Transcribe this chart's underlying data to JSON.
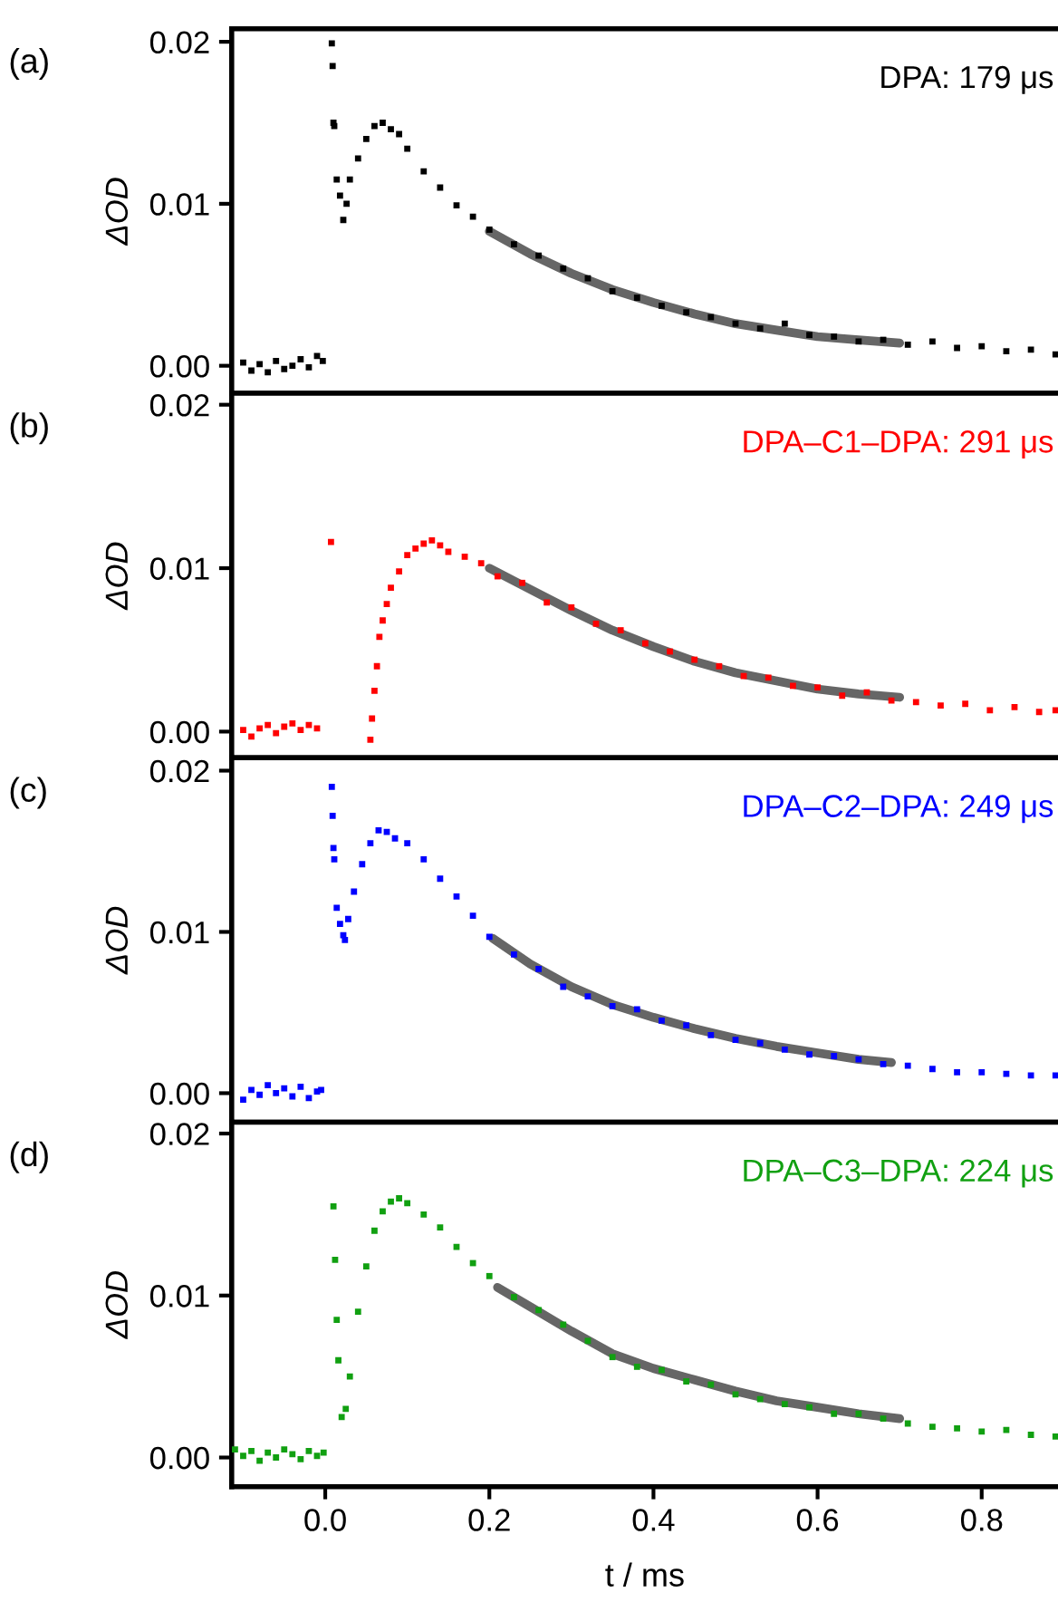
{
  "chart_data": [
    {
      "type": "scatter",
      "annotations": [
        "(a)"
      ],
      "ylabel": "ΔOD",
      "xlim": [
        -0.114,
        0.893
      ],
      "ylim": [
        -0.0017,
        0.0208
      ],
      "yticks": [
        {
          "value": 0,
          "label": "0.00"
        },
        {
          "value": 0.01,
          "label": "0.01"
        },
        {
          "value": 0.02,
          "label": "0.02"
        }
      ],
      "tick_labels": "y",
      "grid": false,
      "legend": false,
      "series": [
        {
          "name": "DPA: 179 μs",
          "color": "#000000",
          "marker": "square",
          "x": [
            -0.1,
            -0.09,
            -0.08,
            -0.07,
            -0.06,
            -0.05,
            -0.04,
            -0.03,
            -0.02,
            -0.01,
            -0.003,
            0.008,
            0.009,
            0.01,
            0.011,
            0.014,
            0.018,
            0.022,
            0.026,
            0.03,
            0.04,
            0.05,
            0.06,
            0.07,
            0.08,
            0.09,
            0.1,
            0.12,
            0.14,
            0.16,
            0.18,
            0.2,
            0.23,
            0.26,
            0.29,
            0.32,
            0.35,
            0.38,
            0.41,
            0.44,
            0.47,
            0.5,
            0.53,
            0.56,
            0.59,
            0.62,
            0.65,
            0.68,
            0.71,
            0.74,
            0.77,
            0.8,
            0.83,
            0.86,
            0.89
          ],
          "values": [
            0.0002,
            -0.0003,
            0.0001,
            -0.0004,
            0.0003,
            -0.0002,
            0.0,
            0.0004,
            -0.0001,
            0.0006,
            0.0003,
            0.0199,
            0.0185,
            0.015,
            0.0148,
            0.0115,
            0.0105,
            0.009,
            0.01,
            0.0115,
            0.0128,
            0.014,
            0.0148,
            0.015,
            0.0146,
            0.0143,
            0.0134,
            0.012,
            0.011,
            0.0099,
            0.0092,
            0.0084,
            0.0075,
            0.0068,
            0.006,
            0.0054,
            0.0046,
            0.0042,
            0.0037,
            0.0033,
            0.003,
            0.0026,
            0.0023,
            0.0026,
            0.0019,
            0.0018,
            0.0015,
            0.0016,
            0.0013,
            0.0015,
            0.0011,
            0.0012,
            0.0009,
            0.001,
            0.0007
          ]
        },
        {
          "type": "line",
          "color": "#666666",
          "x": [
            0.2,
            0.25,
            0.3,
            0.35,
            0.4,
            0.45,
            0.5,
            0.55,
            0.6,
            0.65,
            0.7
          ],
          "values": [
            0.0083,
            0.0069,
            0.0057,
            0.0047,
            0.0039,
            0.0032,
            0.0026,
            0.0022,
            0.0018,
            0.0016,
            0.0014
          ]
        }
      ]
    },
    {
      "type": "scatter",
      "annotations": [
        "(b)"
      ],
      "ylabel": "ΔOD",
      "xlim": [
        -0.114,
        0.893
      ],
      "ylim": [
        -0.0016,
        0.0207
      ],
      "yticks": [
        {
          "value": 0,
          "label": "0.00"
        },
        {
          "value": 0.01,
          "label": "0.01"
        },
        {
          "value": 0.02,
          "label": "0.02"
        }
      ],
      "tick_labels": "y",
      "grid": false,
      "legend": false,
      "series": [
        {
          "name": "DPA–C1–DPA: 291 μs",
          "color": "#ff0000",
          "marker": "square",
          "x": [
            -0.1,
            -0.09,
            -0.08,
            -0.07,
            -0.06,
            -0.05,
            -0.04,
            -0.03,
            -0.02,
            -0.01,
            0.007,
            0.055,
            0.057,
            0.06,
            0.063,
            0.066,
            0.07,
            0.075,
            0.08,
            0.09,
            0.1,
            0.11,
            0.12,
            0.13,
            0.14,
            0.15,
            0.17,
            0.19,
            0.21,
            0.24,
            0.27,
            0.3,
            0.33,
            0.36,
            0.39,
            0.42,
            0.45,
            0.48,
            0.51,
            0.54,
            0.57,
            0.6,
            0.63,
            0.66,
            0.69,
            0.72,
            0.75,
            0.78,
            0.81,
            0.84,
            0.87,
            0.89
          ],
          "values": [
            0.0001,
            -0.0003,
            0.0002,
            0.0004,
            -0.0001,
            0.0003,
            0.0005,
            0.0001,
            0.0004,
            0.0002,
            0.0116,
            -0.0005,
            0.0008,
            0.0025,
            0.004,
            0.0058,
            0.0068,
            0.0078,
            0.0088,
            0.0098,
            0.0108,
            0.0112,
            0.0115,
            0.0117,
            0.0114,
            0.011,
            0.0107,
            0.0103,
            0.0095,
            0.0091,
            0.0079,
            0.0076,
            0.0066,
            0.0062,
            0.0054,
            0.0049,
            0.0044,
            0.004,
            0.0034,
            0.0033,
            0.0028,
            0.0027,
            0.0022,
            0.0024,
            0.0019,
            0.0018,
            0.0016,
            0.0017,
            0.0013,
            0.0015,
            0.0012,
            0.0013
          ]
        },
        {
          "type": "line",
          "color": "#666666",
          "x": [
            0.2,
            0.25,
            0.3,
            0.35,
            0.4,
            0.45,
            0.5,
            0.55,
            0.6,
            0.65,
            0.7
          ],
          "values": [
            0.01,
            0.0087,
            0.0074,
            0.0062,
            0.0052,
            0.0043,
            0.0036,
            0.0031,
            0.0026,
            0.0023,
            0.0021
          ]
        }
      ]
    },
    {
      "type": "scatter",
      "annotations": [
        "(c)"
      ],
      "ylabel": "ΔOD",
      "xlim": [
        -0.114,
        0.893
      ],
      "ylim": [
        -0.0018,
        0.0208
      ],
      "yticks": [
        {
          "value": 0,
          "label": "0.00"
        },
        {
          "value": 0.01,
          "label": "0.01"
        },
        {
          "value": 0.02,
          "label": "0.02"
        }
      ],
      "tick_labels": "y",
      "grid": false,
      "legend": false,
      "series": [
        {
          "name": "DPA–C2–DPA: 249 μs",
          "color": "#0000ff",
          "marker": "square",
          "x": [
            -0.1,
            -0.09,
            -0.08,
            -0.07,
            -0.06,
            -0.05,
            -0.04,
            -0.03,
            -0.02,
            -0.01,
            -0.005,
            0.008,
            0.009,
            0.01,
            0.011,
            0.014,
            0.018,
            0.022,
            0.024,
            0.028,
            0.035,
            0.045,
            0.055,
            0.065,
            0.075,
            0.085,
            0.1,
            0.12,
            0.14,
            0.16,
            0.18,
            0.2,
            0.23,
            0.26,
            0.29,
            0.32,
            0.35,
            0.38,
            0.41,
            0.44,
            0.47,
            0.5,
            0.53,
            0.56,
            0.59,
            0.62,
            0.65,
            0.68,
            0.71,
            0.74,
            0.77,
            0.8,
            0.83,
            0.86,
            0.89
          ],
          "values": [
            -0.0004,
            0.0002,
            -0.0001,
            0.0005,
            0.0,
            0.0003,
            -0.0002,
            0.0004,
            -0.0003,
            0.0001,
            0.0002,
            0.019,
            0.0172,
            0.0152,
            0.0145,
            0.0115,
            0.0105,
            0.0098,
            0.0095,
            0.0108,
            0.0125,
            0.0142,
            0.0155,
            0.0163,
            0.0162,
            0.0158,
            0.0155,
            0.0145,
            0.0133,
            0.0122,
            0.011,
            0.0097,
            0.0086,
            0.0077,
            0.0066,
            0.006,
            0.0054,
            0.0052,
            0.0045,
            0.0042,
            0.0036,
            0.0033,
            0.0031,
            0.0027,
            0.0024,
            0.0023,
            0.0021,
            0.0018,
            0.0017,
            0.0015,
            0.0013,
            0.0013,
            0.0012,
            0.0011,
            0.0011
          ]
        },
        {
          "type": "line",
          "color": "#666666",
          "x": [
            0.204,
            0.25,
            0.3,
            0.35,
            0.4,
            0.45,
            0.5,
            0.55,
            0.6,
            0.65,
            0.69
          ],
          "values": [
            0.0096,
            0.008,
            0.0066,
            0.0055,
            0.0047,
            0.004,
            0.0034,
            0.0029,
            0.0025,
            0.0021,
            0.0019
          ]
        }
      ]
    },
    {
      "type": "scatter",
      "annotations": [
        "(d)"
      ],
      "ylabel": "ΔOD",
      "xlabel": "t / ms",
      "xlim": [
        -0.114,
        0.893
      ],
      "ylim": [
        -0.0018,
        0.0207
      ],
      "xticks": [
        {
          "value": 0,
          "label": "0.0"
        },
        {
          "value": 0.2,
          "label": "0.2"
        },
        {
          "value": 0.4,
          "label": "0.4"
        },
        {
          "value": 0.6,
          "label": "0.6"
        },
        {
          "value": 0.8,
          "label": "0.8"
        }
      ],
      "yticks": [
        {
          "value": 0,
          "label": "0.00"
        },
        {
          "value": 0.01,
          "label": "0.01"
        },
        {
          "value": 0.02,
          "label": "0.02"
        }
      ],
      "grid": false,
      "legend": false,
      "series": [
        {
          "name": "DPA–C3–DPA: 224 μs",
          "color": "#11a011",
          "marker": "square",
          "x": [
            -0.11,
            -0.1,
            -0.09,
            -0.08,
            -0.07,
            -0.06,
            -0.05,
            -0.04,
            -0.03,
            -0.02,
            -0.01,
            -0.002,
            0.01,
            0.012,
            0.014,
            0.016,
            0.02,
            0.025,
            0.03,
            0.04,
            0.05,
            0.06,
            0.07,
            0.08,
            0.09,
            0.1,
            0.12,
            0.14,
            0.16,
            0.18,
            0.2,
            0.23,
            0.26,
            0.29,
            0.32,
            0.35,
            0.38,
            0.41,
            0.44,
            0.47,
            0.5,
            0.53,
            0.56,
            0.59,
            0.62,
            0.65,
            0.68,
            0.71,
            0.74,
            0.77,
            0.8,
            0.83,
            0.86,
            0.89
          ],
          "values": [
            0.0005,
            0.0001,
            0.0004,
            -0.0002,
            0.0003,
            0.0,
            0.0005,
            0.0002,
            -0.0001,
            0.0004,
            0.0001,
            0.0003,
            0.0155,
            0.0122,
            0.0085,
            0.006,
            0.0025,
            0.003,
            0.005,
            0.009,
            0.0118,
            0.014,
            0.0152,
            0.0158,
            0.016,
            0.0157,
            0.015,
            0.0142,
            0.013,
            0.012,
            0.0112,
            0.0099,
            0.0091,
            0.0082,
            0.0072,
            0.0062,
            0.0056,
            0.0054,
            0.0047,
            0.0045,
            0.0039,
            0.0036,
            0.0033,
            0.0031,
            0.0027,
            0.0027,
            0.0024,
            0.0021,
            0.0019,
            0.0018,
            0.0016,
            0.0017,
            0.0014,
            0.0013
          ]
        },
        {
          "type": "line",
          "color": "#666666",
          "x": [
            0.21,
            0.25,
            0.3,
            0.35,
            0.4,
            0.45,
            0.5,
            0.55,
            0.6,
            0.65,
            0.7
          ],
          "values": [
            0.0105,
            0.0093,
            0.0078,
            0.0064,
            0.0055,
            0.0048,
            0.0041,
            0.0035,
            0.0031,
            0.0027,
            0.0024
          ]
        }
      ]
    }
  ]
}
